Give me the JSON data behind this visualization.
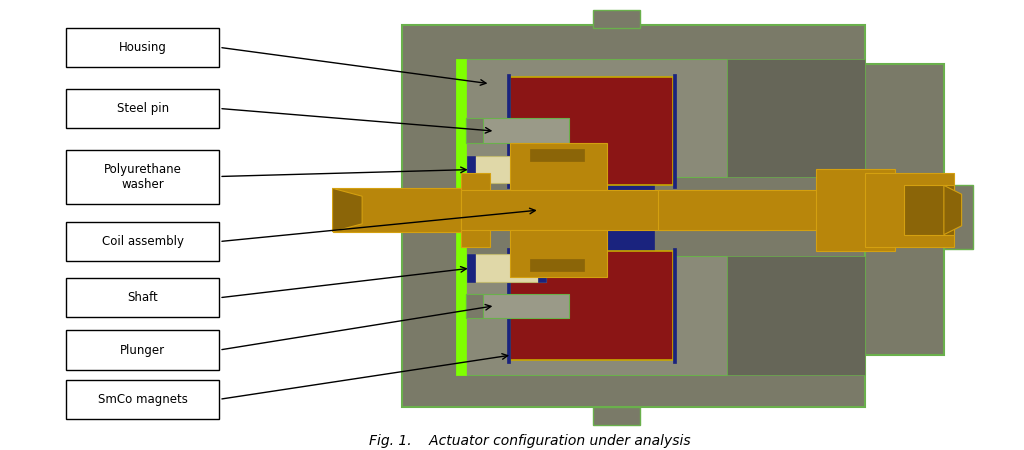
{
  "title": "Fig. 1.    Actuator configuration under analysis",
  "title_fontsize": 10,
  "background_color": "#ffffff",
  "labels": [
    "Housing",
    "Steel pin",
    "Polyurethane\nwasher",
    "Coil assembly",
    "Shaft",
    "Plunger",
    "SmCo magnets"
  ],
  "colors": {
    "housing": "#7a7a68",
    "housing_light": "#8a8a78",
    "housing_dark": "#666658",
    "green_bright": "#7fff00",
    "green_outline": "#6ab04c",
    "coil": "#b8860b",
    "coil_dark": "#8b6508",
    "coil_hollow": "#5a4006",
    "magnet": "#8b1515",
    "magnet_border": "#c8a800",
    "blue_dark": "#1a237e",
    "washer": "#e0d8a8",
    "steel_gray": "#9a9a88",
    "right_extend": "#8a8a78"
  }
}
